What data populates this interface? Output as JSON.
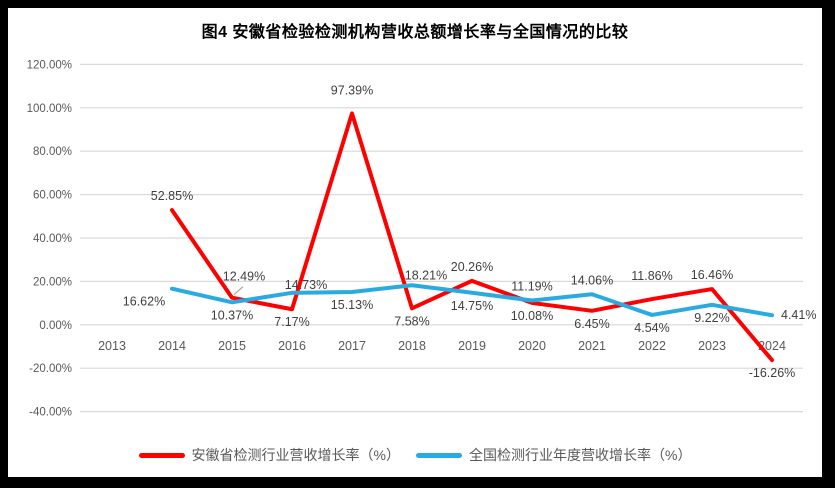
{
  "title": "图4 安徽省检验检测机构营收总额增长率与全国情况的比较",
  "chart_data": {
    "type": "line",
    "title": "图4 安徽省检验检测机构营收总额增长率与全国情况的比较",
    "categories": [
      "2013",
      "2014",
      "2015",
      "2016",
      "2017",
      "2018",
      "2019",
      "2020",
      "2021",
      "2022",
      "2023",
      "2024"
    ],
    "y_ticks": [
      "120.00%",
      "100.00%",
      "80.00%",
      "60.00%",
      "40.00%",
      "20.00%",
      "0.00%",
      "-20.00%",
      "-40.00%"
    ],
    "ylim": [
      -40,
      120
    ],
    "grid": true,
    "legend_position": "bottom",
    "gridline_color": "#D9D9D9",
    "axis_label_color": "#595959",
    "data_label_color": "#3F3F3F",
    "leader_line_color": "#A6A6A6",
    "series": [
      {
        "name": "安徽省检测行业营收增长率（%）",
        "color": "#FF0000",
        "values": [
          null,
          52.85,
          12.49,
          7.17,
          97.39,
          7.58,
          20.26,
          10.08,
          6.45,
          11.86,
          16.46,
          -16.26
        ],
        "labels": [
          null,
          "52.85%",
          "12.49%",
          "7.17%",
          "97.39%",
          "7.58%",
          "20.26%",
          "10.08%",
          "6.45%",
          "11.86%",
          "16.46%",
          "-16.26%"
        ],
        "label_positions": [
          null,
          "above",
          "above",
          "below",
          "above",
          "below",
          "above",
          "below",
          "below",
          "above",
          "above",
          "below"
        ],
        "label_offsets": {
          "2": [
            12,
            -7
          ],
          "4": [
            0,
            -9
          ],
          "9": [
            0,
            -9
          ]
        },
        "leader_point_index": 2
      },
      {
        "name": "全国检测行业年度营收增长率（%）",
        "color": "#29ABE2",
        "values": [
          null,
          16.62,
          10.37,
          14.73,
          15.13,
          18.21,
          14.75,
          11.19,
          14.06,
          4.54,
          9.22,
          4.41
        ],
        "labels": [
          null,
          "16.62%",
          "10.37%",
          "14.73%",
          "15.13%",
          "18.21%",
          "14.75%",
          "11.19%",
          "14.06%",
          "4.54%",
          "9.22%",
          "4.41%"
        ],
        "label_positions": [
          null,
          "below",
          "below",
          "above",
          "below",
          "above",
          "below",
          "above",
          "above",
          "below",
          "below",
          "right"
        ],
        "label_offsets": {
          "1": [
            -28,
            0
          ],
          "3": [
            14,
            6
          ],
          "5": [
            14,
            4
          ]
        }
      }
    ]
  }
}
